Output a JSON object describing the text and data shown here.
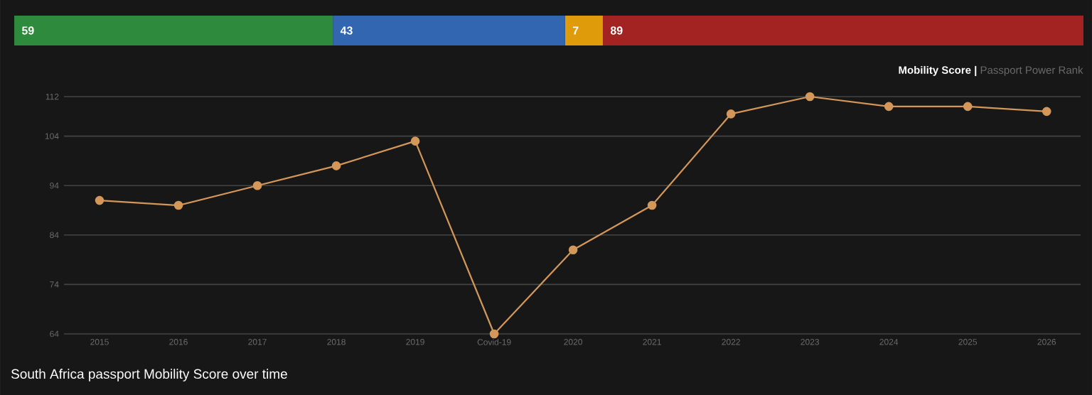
{
  "chart_data": [
    {
      "type": "bar",
      "orientation": "horizontal",
      "stacked": true,
      "categories": [
        null
      ],
      "data_labels": true,
      "series": [
        {
          "color": "#2e8b3e",
          "values": [
            59
          ]
        },
        {
          "color": "#3266b0",
          "values": [
            43
          ]
        },
        {
          "color": "#e09b0a",
          "values": [
            7
          ]
        },
        {
          "color": "#a32222",
          "values": [
            89
          ]
        }
      ]
    },
    {
      "type": "line",
      "title": "South Africa passport Mobility Score over time",
      "annotations": [
        "Mobility Score",
        "|",
        "Passport Power Rank"
      ],
      "categories": [
        "2015",
        "2016",
        "2017",
        "2018",
        "2019",
        "Covid-19",
        "2020",
        "2021",
        "2022",
        "2023",
        "2024",
        "2025",
        "2026"
      ],
      "ylim": [
        64,
        112
      ],
      "yticks": [
        64,
        74,
        84,
        94,
        104,
        112
      ],
      "grid": "y",
      "marker": "circle",
      "line_style": "solid",
      "series": [
        {
          "color": "#d4975a",
          "values": [
            91,
            90,
            94,
            98,
            103,
            64,
            81,
            90,
            108.5,
            112,
            110,
            110,
            109
          ]
        }
      ]
    }
  ]
}
